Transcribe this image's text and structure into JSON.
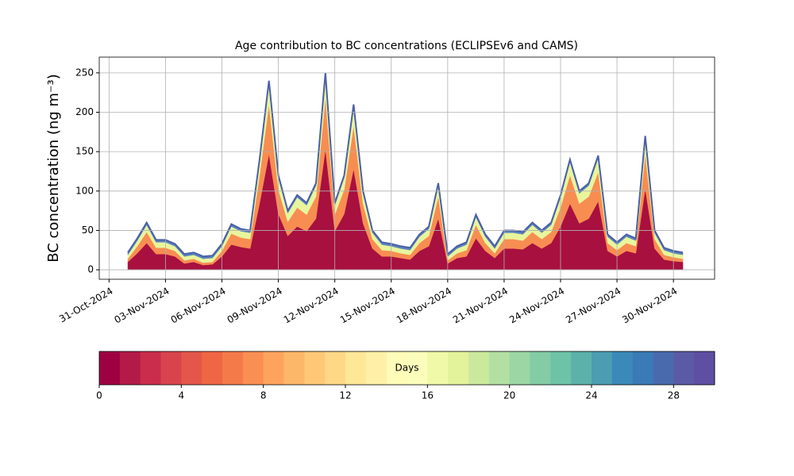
{
  "chart_data": {
    "type": "stacked_area",
    "title": "Age contribution to BC concentrations (ECLIPSEv6 and CAMS)",
    "y_label": "BC concentration (ng m⁻³)",
    "x": [
      "2024-11-01T00:00",
      "2024-11-01T12:00",
      "2024-11-02T00:00",
      "2024-11-02T12:00",
      "2024-11-03T00:00",
      "2024-11-03T12:00",
      "2024-11-04T00:00",
      "2024-11-04T12:00",
      "2024-11-05T00:00",
      "2024-11-05T12:00",
      "2024-11-06T00:00",
      "2024-11-06T12:00",
      "2024-11-07T00:00",
      "2024-11-07T12:00",
      "2024-11-08T00:00",
      "2024-11-08T12:00",
      "2024-11-09T00:00",
      "2024-11-09T12:00",
      "2024-11-10T00:00",
      "2024-11-10T12:00",
      "2024-11-11T00:00",
      "2024-11-11T12:00",
      "2024-11-12T00:00",
      "2024-11-12T12:00",
      "2024-11-13T00:00",
      "2024-11-13T12:00",
      "2024-11-14T00:00",
      "2024-11-14T12:00",
      "2024-11-15T00:00",
      "2024-11-15T12:00",
      "2024-11-16T00:00",
      "2024-11-16T12:00",
      "2024-11-17T00:00",
      "2024-11-17T12:00",
      "2024-11-18T00:00",
      "2024-11-18T12:00",
      "2024-11-19T00:00",
      "2024-11-19T12:00",
      "2024-11-20T00:00",
      "2024-11-20T12:00",
      "2024-11-21T00:00",
      "2024-11-21T12:00",
      "2024-11-22T00:00",
      "2024-11-22T12:00",
      "2024-11-23T00:00",
      "2024-11-23T12:00",
      "2024-11-24T00:00",
      "2024-11-24T12:00",
      "2024-11-25T00:00",
      "2024-11-25T12:00",
      "2024-11-26T00:00",
      "2024-11-26T12:00",
      "2024-11-27T00:00",
      "2024-11-27T12:00",
      "2024-11-28T00:00",
      "2024-11-28T12:00",
      "2024-11-29T00:00",
      "2024-11-29T12:00",
      "2024-11-30T00:00",
      "2024-11-30T12:00"
    ],
    "series": [
      {
        "color": "#a8103f",
        "values": [
          10,
          21,
          34,
          20,
          20,
          17,
          8,
          10,
          6,
          7,
          17,
          32,
          29,
          27,
          84,
          147,
          71,
          43,
          55,
          49,
          65,
          153,
          49,
          71,
          128,
          59,
          27,
          17,
          17,
          15,
          13,
          24,
          30,
          65,
          8,
          15,
          17,
          40,
          24,
          15,
          27,
          27,
          26,
          34,
          27,
          34,
          55,
          84,
          59,
          65,
          87,
          24,
          17,
          24,
          21,
          103,
          27,
          13,
          11,
          10
        ]
      },
      {
        "color": "#f88d52",
        "values": [
          4,
          9,
          14,
          8,
          8,
          7,
          4,
          4,
          3,
          3,
          7,
          14,
          12,
          12,
          36,
          63,
          31,
          18,
          24,
          21,
          28,
          66,
          21,
          31,
          55,
          25,
          12,
          8,
          7,
          6,
          6,
          10,
          13,
          28,
          4,
          6,
          8,
          17,
          10,
          6,
          12,
          12,
          11,
          14,
          12,
          14,
          24,
          36,
          25,
          28,
          37,
          10,
          8,
          10,
          9,
          44,
          12,
          6,
          5,
          4
        ]
      },
      {
        "color": "#e8f59c",
        "values": [
          5,
          7,
          9,
          7,
          7,
          6,
          5,
          5,
          5,
          5,
          6,
          9,
          8,
          8,
          17,
          27,
          15,
          11,
          13,
          12,
          14,
          28,
          12,
          15,
          24,
          13,
          8,
          7,
          6,
          6,
          6,
          8,
          9,
          14,
          5,
          6,
          7,
          10,
          8,
          6,
          8,
          8,
          8,
          9,
          8,
          9,
          13,
          17,
          13,
          14,
          18,
          8,
          7,
          8,
          7,
          20,
          8,
          6,
          5,
          5
        ]
      },
      {
        "color": "#5b84bd",
        "values": [
          3,
          3,
          3,
          3,
          3,
          3,
          3,
          3,
          3,
          3,
          3,
          3,
          3,
          3,
          3,
          3,
          3,
          3,
          3,
          3,
          3,
          3,
          3,
          3,
          3,
          3,
          3,
          3,
          3,
          3,
          3,
          3,
          3,
          3,
          3,
          3,
          3,
          3,
          3,
          3,
          3,
          3,
          3,
          3,
          3,
          3,
          3,
          3,
          3,
          3,
          3,
          3,
          3,
          3,
          3,
          3,
          3,
          3,
          3,
          3
        ]
      }
    ],
    "edge_color": "#4a60a8",
    "xlim": [
      "2024-10-30T11:30",
      "2024-12-02T04:30"
    ],
    "xticks": [
      {
        "value": "2024-10-31T00:00",
        "label": "31-Oct-2024"
      },
      {
        "value": "2024-11-03T00:00",
        "label": "03-Nov-2024"
      },
      {
        "value": "2024-11-06T00:00",
        "label": "06-Nov-2024"
      },
      {
        "value": "2024-11-09T00:00",
        "label": "09-Nov-2024"
      },
      {
        "value": "2024-11-12T00:00",
        "label": "12-Nov-2024"
      },
      {
        "value": "2024-11-15T00:00",
        "label": "15-Nov-2024"
      },
      {
        "value": "2024-11-18T00:00",
        "label": "18-Nov-2024"
      },
      {
        "value": "2024-11-21T00:00",
        "label": "21-Nov-2024"
      },
      {
        "value": "2024-11-24T00:00",
        "label": "24-Nov-2024"
      },
      {
        "value": "2024-11-27T00:00",
        "label": "27-Nov-2024"
      },
      {
        "value": "2024-11-30T00:00",
        "label": "30-Nov-2024"
      }
    ],
    "ylim": [
      -12,
      270
    ],
    "yticks": [
      0,
      50,
      100,
      150,
      200,
      250
    ],
    "grid": true,
    "colorbar": {
      "label": "Days",
      "lim": [
        0,
        30
      ],
      "ticks": [
        0,
        4,
        8,
        12,
        16,
        20,
        24,
        28
      ],
      "colors": [
        "#9e0142",
        "#b41a47",
        "#c92d4b",
        "#d8434e",
        "#e4564a",
        "#ef6645",
        "#f57a4a",
        "#f98f53",
        "#fca45e",
        "#fdb768",
        "#fec877",
        "#fed887",
        "#fee797",
        "#fef1a7",
        "#fffbb8",
        "#fbfdba",
        "#f0f9a8",
        "#e2f39b",
        "#cbe99d",
        "#b3e0a2",
        "#9bd6a4",
        "#83cca5",
        "#6dc3a6",
        "#5cb1aa",
        "#4c9db1",
        "#3b89b8",
        "#3a7ab6",
        "#4a6aae",
        "#5a5aa6",
        "#5e4fa2"
      ]
    }
  }
}
